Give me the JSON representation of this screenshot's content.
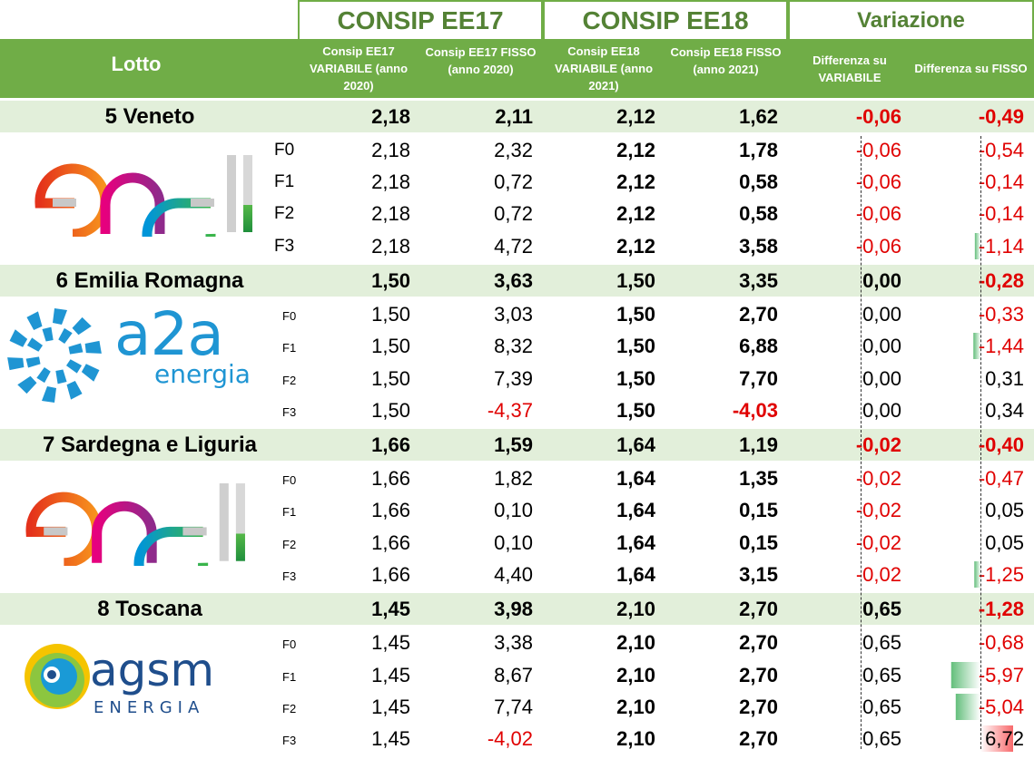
{
  "header": {
    "group_ee17": "CONSIP EE17",
    "group_ee18": "CONSIP EE18",
    "group_var": "Variazione",
    "lotto": "Lotto",
    "col_ee17_var": "Consip EE17 VARIABILE (anno 2020)",
    "col_ee17_fix": "Consip EE17 FISSO (anno 2020)",
    "col_ee18_var": "Consip EE18 VARIABILE (anno 2021)",
    "col_ee18_fix": "Consip EE18 FISSO (anno 2021)",
    "col_diff_var": "Differenza su VARIABILE",
    "col_diff_fix": "Differenza su FISSO"
  },
  "colors": {
    "header_green": "#70ad47",
    "light_green": "#e2efda",
    "title_green": "#548235",
    "negative_red": "#e00000"
  },
  "lotti": [
    {
      "name": "5 Veneto",
      "logo": "enel-logo",
      "logo_text": "enel",
      "band_style": "large",
      "total": [
        "2,18",
        "2,11",
        "2,12",
        "1,62",
        "-0,06",
        "-0,49"
      ],
      "bands": [
        {
          "band": "F0",
          "values": [
            "2,18",
            "2,32",
            "2,12",
            "1,78",
            "-0,06",
            "-0,54"
          ]
        },
        {
          "band": "F1",
          "values": [
            "2,18",
            "0,72",
            "2,12",
            "0,58",
            "-0,06",
            "-0,14"
          ]
        },
        {
          "band": "F2",
          "values": [
            "2,18",
            "0,72",
            "2,12",
            "0,58",
            "-0,06",
            "-0,14"
          ]
        },
        {
          "band": "F3",
          "values": [
            "2,18",
            "4,72",
            "2,12",
            "3,58",
            "-0,06",
            "-1,14"
          ]
        }
      ]
    },
    {
      "name": "6 Emilia Romagna",
      "logo": "a2a-energia-logo",
      "logo_text": "a2a",
      "logo_subtext": "energia",
      "band_style": "small",
      "total": [
        "1,50",
        "3,63",
        "1,50",
        "3,35",
        "0,00",
        "-0,28"
      ],
      "bands": [
        {
          "band": "F0",
          "values": [
            "1,50",
            "3,03",
            "1,50",
            "2,70",
            "0,00",
            "-0,33"
          ]
        },
        {
          "band": "F1",
          "values": [
            "1,50",
            "8,32",
            "1,50",
            "6,88",
            "0,00",
            "-1,44"
          ]
        },
        {
          "band": "F2",
          "values": [
            "1,50",
            "7,39",
            "1,50",
            "7,70",
            "0,00",
            "0,31"
          ]
        },
        {
          "band": "F3",
          "values": [
            "1,50",
            "-4,37",
            "1,50",
            "-4,03",
            "0,00",
            "0,34"
          ]
        }
      ]
    },
    {
      "name": "7 Sardegna e Liguria",
      "logo": "enel-logo",
      "logo_text": "enel",
      "band_style": "small",
      "total": [
        "1,66",
        "1,59",
        "1,64",
        "1,19",
        "-0,02",
        "-0,40"
      ],
      "bands": [
        {
          "band": "F0",
          "values": [
            "1,66",
            "1,82",
            "1,64",
            "1,35",
            "-0,02",
            "-0,47"
          ]
        },
        {
          "band": "F1",
          "values": [
            "1,66",
            "0,10",
            "1,64",
            "0,15",
            "-0,02",
            "0,05"
          ]
        },
        {
          "band": "F2",
          "values": [
            "1,66",
            "0,10",
            "1,64",
            "0,15",
            "-0,02",
            "0,05"
          ]
        },
        {
          "band": "F3",
          "values": [
            "1,66",
            "4,40",
            "1,64",
            "3,15",
            "-0,02",
            "-1,25"
          ]
        }
      ]
    },
    {
      "name": "8 Toscana",
      "logo": "agsm-energia-logo",
      "logo_text": "agsm",
      "logo_subtext": "ENERGIA",
      "band_style": "small",
      "total": [
        "1,45",
        "3,98",
        "2,10",
        "2,70",
        "0,65",
        "-1,28"
      ],
      "bands": [
        {
          "band": "F0",
          "values": [
            "1,45",
            "3,38",
            "2,10",
            "2,70",
            "0,65",
            "-0,68"
          ]
        },
        {
          "band": "F1",
          "values": [
            "1,45",
            "8,67",
            "2,10",
            "2,70",
            "0,65",
            "-5,97"
          ]
        },
        {
          "band": "F2",
          "values": [
            "1,45",
            "7,74",
            "2,10",
            "2,70",
            "0,65",
            "-5,04"
          ]
        },
        {
          "band": "F3",
          "values": [
            "1,45",
            "-4,02",
            "2,10",
            "2,70",
            "0,65",
            "6,72"
          ]
        }
      ]
    }
  ]
}
